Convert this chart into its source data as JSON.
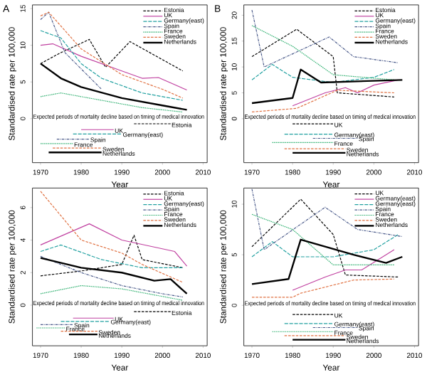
{
  "chart_data": [
    {
      "type": "line",
      "title": "A",
      "xlabel": "Year",
      "ylabel": "Standardised rate per 100,000",
      "xlim": [
        1968,
        2011
      ],
      "xticks": [
        1970,
        1980,
        1990,
        2000,
        2010
      ],
      "ylim": [
        -6,
        15.5
      ],
      "yticks": [
        0,
        5,
        10,
        15
      ],
      "legend": "top right",
      "marker": "none",
      "annotations": [
        "Expected periods of mortality decline based on timing of medical innovation"
      ],
      "series": [
        {
          "name": "Estonia",
          "color": "#000000",
          "line_style": "dashed",
          "x": [
            1970,
            1975,
            1982,
            1986,
            1992,
            2005
          ],
          "values": [
            7.5,
            9,
            10.8,
            7,
            10.5,
            6.5
          ]
        },
        {
          "name": "UK",
          "color": "#c040a0",
          "line_style": "solid",
          "x": [
            1970,
            1973,
            1980,
            1990,
            1995,
            1999,
            2006
          ],
          "values": [
            10,
            10.2,
            8.5,
            6.5,
            5.5,
            5.6,
            3.9
          ]
        },
        {
          "name": "Germany(east)",
          "color": "#20a0a0",
          "line_style": "longdash",
          "x": [
            1970,
            1975,
            1980,
            1985,
            1995,
            2005
          ],
          "values": [
            12,
            11,
            7.5,
            5.5,
            3.5,
            2.5
          ]
        },
        {
          "name": "Spain",
          "color": "#4a5a8a",
          "line_style": "dashdot",
          "x": [
            1970,
            1972,
            1976,
            1985
          ],
          "values": [
            13.5,
            14.5,
            9,
            4
          ]
        },
        {
          "name": "France",
          "color": "#30b070",
          "line_style": "dotted",
          "x": [
            1970,
            1975,
            1985,
            1995,
            2005
          ],
          "values": [
            3,
            3.5,
            2.5,
            1.5,
            0.9
          ]
        },
        {
          "name": "Sweden",
          "color": "#e07040",
          "line_style": "dashed",
          "x": [
            1970,
            1972,
            1980,
            1990,
            2000,
            2005
          ],
          "values": [
            14,
            14.5,
            9.5,
            6,
            4,
            2.8
          ]
        },
        {
          "name": "Netherlands",
          "color": "#000000",
          "line_style": "solid",
          "x": [
            1970,
            1975,
            1980,
            1990,
            2000,
            2006
          ],
          "values": [
            7.5,
            5.5,
            4.3,
            2.8,
            1.8,
            1.2
          ]
        },
        {
          "type": "step",
          "name": "Estonia",
          "color": "#000000",
          "line_style": "dashed",
          "x": [
            1993,
            2002
          ],
          "values": [
            -0.7,
            -0.7
          ]
        },
        {
          "type": "step",
          "name": "UK",
          "color": "#c040a0",
          "line_style": "solid",
          "x": [
            1980,
            1988
          ],
          "values": [
            -1.5,
            -1.5
          ]
        },
        {
          "type": "step",
          "name": "Germany(east)",
          "color": "#20a0a0",
          "line_style": "longdash",
          "x": [
            1978,
            1990
          ],
          "values": [
            -2.1,
            -2.1
          ]
        },
        {
          "type": "step",
          "name": "Spain",
          "color": "#4a5a8a",
          "line_style": "dashdot",
          "x": [
            1974,
            1982
          ],
          "values": [
            -2.8,
            -2.8
          ]
        },
        {
          "type": "step",
          "name": "France",
          "color": "#30b070",
          "line_style": "dotted",
          "x": [
            1970,
            1978
          ],
          "values": [
            -3.4,
            -3.4
          ]
        },
        {
          "type": "step",
          "name": "Sweden",
          "color": "#e07040",
          "line_style": "dashed",
          "x": [
            1973,
            1985
          ],
          "values": [
            -4,
            -4
          ]
        },
        {
          "type": "step",
          "name": "Netherlands",
          "color": "#000000",
          "line_style": "solid",
          "x": [
            1972,
            1985
          ],
          "values": [
            -4.6,
            -4.6
          ]
        }
      ]
    },
    {
      "type": "line",
      "title": "B",
      "xlabel": "Year",
      "ylabel": "Standardised rate per 100,000",
      "xlim": [
        1968,
        2011
      ],
      "xticks": [
        1970,
        1980,
        1990,
        2000,
        2010
      ],
      "ylim": [
        -8.5,
        22
      ],
      "yticks": [
        0,
        5,
        10,
        15,
        20
      ],
      "legend": "top right",
      "marker": "none",
      "annotations": [
        "Expected periods of mortality decline based on timing of medical innovation"
      ],
      "series": [
        {
          "name": "Estonia",
          "color": "#000000",
          "line_style": "dashed",
          "x": [
            1970,
            1981,
            1990,
            1991,
            2005
          ],
          "values": [
            12,
            17.3,
            12,
            5,
            4.2
          ]
        },
        {
          "name": "UK",
          "color": "#c040a0",
          "line_style": "solid",
          "x": [
            1980,
            1988,
            1993,
            1996,
            2000,
            2006
          ],
          "values": [
            2.5,
            5,
            6,
            5,
            6.5,
            7.5
          ]
        },
        {
          "name": "Germany(east)",
          "color": "#20a0a0",
          "line_style": "longdash",
          "x": [
            1970,
            1975,
            1980,
            1990,
            2000,
            2005
          ],
          "values": [
            7.5,
            10.5,
            8,
            7,
            8,
            9.5
          ]
        },
        {
          "name": "Spain",
          "color": "#4a5a8a",
          "line_style": "dashdot",
          "x": [
            1970,
            1973,
            1989,
            1995,
            2006
          ],
          "values": [
            21,
            10,
            15.8,
            12,
            10.8
          ]
        },
        {
          "name": "France",
          "color": "#30b070",
          "line_style": "dotted",
          "x": [
            1970,
            1980,
            1990,
            2005
          ],
          "values": [
            18,
            14,
            8.5,
            7.5
          ]
        },
        {
          "name": "Sweden",
          "color": "#e07040",
          "line_style": "dashed",
          "x": [
            1970,
            1981,
            1991,
            2005
          ],
          "values": [
            1.3,
            2,
            5.5,
            5
          ]
        },
        {
          "name": "Netherlands",
          "color": "#000000",
          "line_style": "solid",
          "x": [
            1970,
            1980,
            1982,
            1987,
            2007
          ],
          "values": [
            3,
            4,
            9.5,
            7,
            7.5
          ]
        },
        {
          "type": "step",
          "name": "UK",
          "color": "#000000",
          "line_style": "dashed",
          "x": [
            1980,
            1990
          ],
          "values": [
            -1,
            -1
          ]
        },
        {
          "type": "step",
          "name": "Germany(east)",
          "color": "#20a0a0",
          "line_style": "longdash",
          "x": [
            1978,
            1990
          ],
          "values": [
            -3,
            -3
          ]
        },
        {
          "type": "step",
          "name": "Spain",
          "color": "#4a5a8a",
          "line_style": "dashdot",
          "x": [
            1985,
            1996
          ],
          "values": [
            -3.8,
            -3.8
          ]
        },
        {
          "type": "step",
          "name": "France",
          "color": "#30b070",
          "line_style": "dotted",
          "x": [
            1975,
            1990
          ],
          "values": [
            -4.6,
            -4.6
          ]
        },
        {
          "type": "step",
          "name": "Sweden",
          "color": "#e07040",
          "line_style": "dashed",
          "x": [
            1978,
            1993
          ],
          "values": [
            -5.8,
            -5.8
          ]
        },
        {
          "type": "step",
          "name": "Netherlands",
          "color": "#000000",
          "line_style": "solid",
          "x": [
            1980,
            1993
          ],
          "values": [
            -6.6,
            -6.6
          ]
        }
      ]
    },
    {
      "type": "line",
      "xlabel": "Year",
      "ylabel": "Standardised rate per 100,000",
      "xlim": [
        1968,
        2011
      ],
      "xticks": [
        1970,
        1980,
        1990,
        2000,
        2010
      ],
      "ylim": [
        -2.5,
        7.2
      ],
      "yticks": [
        0,
        2,
        4,
        6
      ],
      "legend": "top right",
      "marker": "none",
      "annotations": [
        "Expected periods of mortality decline based on timing of medical innovation"
      ],
      "series": [
        {
          "name": "Estonia",
          "color": "#000000",
          "line_style": "dashed",
          "x": [
            1970,
            1980,
            1990,
            1993,
            1995,
            2005
          ],
          "values": [
            1.8,
            2.1,
            2.5,
            4.3,
            2.8,
            2.3
          ]
        },
        {
          "name": "UK",
          "color": "#c040a0",
          "line_style": "solid",
          "x": [
            1970,
            1982,
            1990,
            2003,
            2006
          ],
          "values": [
            3.7,
            5,
            4,
            3.3,
            2.4
          ]
        },
        {
          "name": "Germany(east)",
          "color": "#20a0a0",
          "line_style": "longdash",
          "x": [
            1970,
            1975,
            1985,
            1995,
            2005
          ],
          "values": [
            3.3,
            3.7,
            2.8,
            2.3,
            2.3
          ]
        },
        {
          "name": "Spain",
          "color": "#4a5a8a",
          "line_style": "dashdot",
          "x": [
            1970,
            1980,
            1990,
            2000,
            2005
          ],
          "values": [
            3,
            2,
            1.2,
            0.7,
            0.5
          ]
        },
        {
          "name": "France",
          "color": "#30b070",
          "line_style": "dotted",
          "x": [
            1970,
            1980,
            1990,
            2005
          ],
          "values": [
            0.7,
            1.2,
            1,
            0.3
          ]
        },
        {
          "name": "Sweden",
          "color": "#e07040",
          "line_style": "dashed",
          "x": [
            1970,
            1980,
            1990,
            1995,
            2005
          ],
          "values": [
            7,
            4,
            3.2,
            2.5,
            1.4
          ]
        },
        {
          "name": "Netherlands",
          "color": "#000000",
          "line_style": "solid",
          "x": [
            1970,
            1980,
            1990,
            1998,
            2002,
            2006
          ],
          "values": [
            2.9,
            2.3,
            2,
            1.5,
            1.6,
            0.7
          ]
        },
        {
          "type": "step",
          "name": "Estonia",
          "color": "#000000",
          "line_style": "dashed",
          "x": [
            1993,
            2002
          ],
          "values": [
            -0.4,
            -0.4
          ]
        },
        {
          "type": "step",
          "name": "UK",
          "color": "#c040a0",
          "line_style": "solid",
          "x": [
            1978,
            1988
          ],
          "values": [
            -0.8,
            -0.8
          ]
        },
        {
          "type": "step",
          "name": "Germany(east)",
          "color": "#20a0a0",
          "line_style": "longdash",
          "x": [
            1975,
            1987
          ],
          "values": [
            -1,
            -1
          ]
        },
        {
          "type": "step",
          "name": "Spain",
          "color": "#4a5a8a",
          "line_style": "dashdot",
          "x": [
            1970,
            1978
          ],
          "values": [
            -1.2,
            -1.2
          ]
        },
        {
          "type": "step",
          "name": "France",
          "color": "#30b070",
          "line_style": "dotted",
          "x": [
            1969,
            1976
          ],
          "values": [
            -1.4,
            -1.4
          ]
        },
        {
          "type": "step",
          "name": "Sweden",
          "color": "#e07040",
          "line_style": "dashed",
          "x": [
            1975,
            1984
          ],
          "values": [
            -1.6,
            -1.6
          ]
        },
        {
          "type": "step",
          "name": "Netherlands",
          "color": "#000000",
          "line_style": "solid",
          "x": [
            1977,
            1984
          ],
          "values": [
            -1.8,
            -1.8
          ]
        }
      ]
    },
    {
      "type": "line",
      "xlabel": "Year",
      "ylabel": "Standardised rate per 100,000",
      "xlim": [
        1968,
        2011
      ],
      "xticks": [
        1970,
        1980,
        1990,
        2000,
        2010
      ],
      "ylim": [
        -4,
        11.6
      ],
      "yticks": [
        0,
        5,
        10
      ],
      "legend": "top right",
      "marker": "none",
      "annotations": [
        "Expected periods of mortality decline based on timing of medical innovation"
      ],
      "series": [
        {
          "name": "UK",
          "color": "#000000",
          "line_style": "dashed",
          "x": [
            1970,
            1982,
            1990,
            1993,
            2006
          ],
          "values": [
            5.8,
            10.5,
            7,
            3,
            2.8
          ]
        },
        {
          "name": "Germany(east)",
          "color": "#c040a0",
          "line_style": "solid",
          "x": [
            1980,
            1988,
            1993,
            1997,
            2005
          ],
          "values": [
            1.5,
            2.8,
            3.5,
            3.5,
            5.5
          ]
        },
        {
          "name": "Germany(east)",
          "color": "#20a0a0",
          "line_style": "longdash",
          "x": [
            1970,
            1975,
            1980,
            1990,
            2000,
            2006
          ],
          "values": [
            4.8,
            6.3,
            4.8,
            4.8,
            5.5,
            7
          ]
        },
        {
          "name": "Spain",
          "color": "#4a5a8a",
          "line_style": "dashdot",
          "x": [
            1970,
            1973,
            1988,
            1996,
            2007
          ],
          "values": [
            11.5,
            5.5,
            9.7,
            7.5,
            6.8
          ]
        },
        {
          "name": "France",
          "color": "#30b070",
          "line_style": "dotted",
          "x": [
            1970,
            1980,
            1990,
            2005
          ],
          "values": [
            9,
            7.5,
            4,
            4
          ]
        },
        {
          "name": "Sweden",
          "color": "#e07040",
          "line_style": "dashed",
          "x": [
            1970,
            1980,
            1982,
            1995,
            2005
          ],
          "values": [
            0.8,
            0.8,
            1.2,
            2.5,
            2.6
          ]
        },
        {
          "name": "Netherlands",
          "color": "#000000",
          "line_style": "solid",
          "x": [
            1970,
            1979,
            1982,
            1995,
            2003,
            2007
          ],
          "values": [
            2.1,
            2.6,
            6.5,
            5,
            4.2,
            4.8
          ]
        },
        {
          "type": "step",
          "name": "UK",
          "color": "#000000",
          "line_style": "dashed",
          "x": [
            1980,
            1990
          ],
          "values": [
            -0.9,
            -0.9
          ]
        },
        {
          "type": "step",
          "name": "Germany(east)",
          "color": "#20a0a0",
          "line_style": "longdash",
          "x": [
            1978,
            1990
          ],
          "values": [
            -1.8,
            -1.8
          ]
        },
        {
          "type": "step",
          "name": "Spain",
          "color": "#4a5a8a",
          "line_style": "dashdot",
          "x": [
            1985,
            1996
          ],
          "values": [
            -2.2,
            -2.2
          ]
        },
        {
          "type": "step",
          "name": "France",
          "color": "#30b070",
          "line_style": "dotted",
          "x": [
            1975,
            1990
          ],
          "values": [
            -2.6,
            -2.6
          ]
        },
        {
          "type": "step",
          "name": "Sweden",
          "color": "#e07040",
          "line_style": "dashed",
          "x": [
            1978,
            1993
          ],
          "values": [
            -3,
            -3
          ]
        },
        {
          "type": "step",
          "name": "Netherlands",
          "color": "#000000",
          "line_style": "solid",
          "x": [
            1980,
            1993
          ],
          "values": [
            -3.4,
            -3.4
          ]
        }
      ]
    }
  ]
}
